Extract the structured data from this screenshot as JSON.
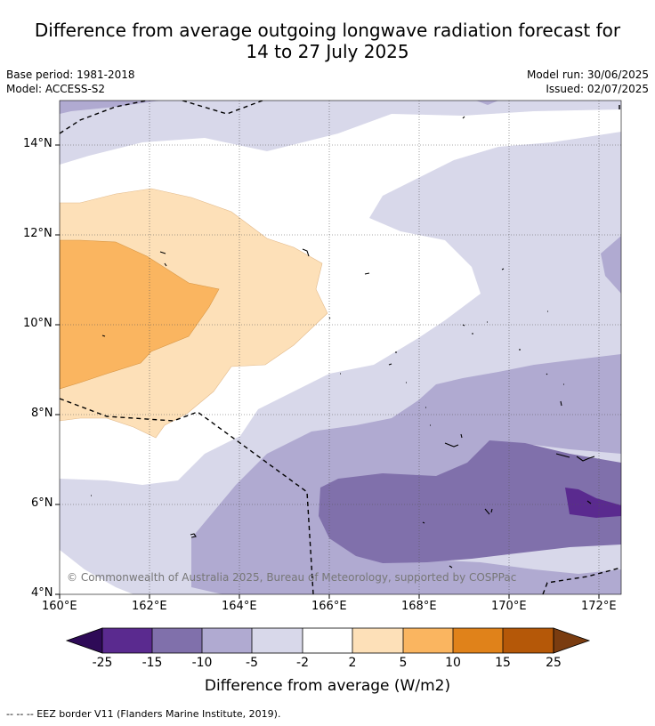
{
  "title_line1": "Difference from average outgoing longwave radiation forecast for",
  "title_line2": "14 to 27 July 2025",
  "base_period": "Base period: 1981-2018",
  "model": "Model: ACCESS-S2",
  "model_run": "Model run: 30/06/2025",
  "issued": "Issued: 02/07/2025",
  "copyright": "© Commonwealth of Australia 2025, Bureau of Meteorology, supported by COSPPac",
  "footnote": "--  --  -- EEZ border V11 (Flanders Marine Institute, 2019).",
  "axes": {
    "y_ticks": [
      "14°N",
      "12°N",
      "10°N",
      "8°N",
      "6°N",
      "4°N"
    ],
    "x_ticks": [
      "160°E",
      "162°E",
      "164°E",
      "166°E",
      "168°E",
      "170°E",
      "172°E"
    ],
    "lat_range": [
      4,
      15
    ],
    "lon_range": [
      160,
      172.5
    ]
  },
  "colorbar": {
    "title": "Difference from average (W/m2)",
    "ticks": [
      "-25",
      "-15",
      "-10",
      "-5",
      "-2",
      "2",
      "5",
      "10",
      "15",
      "25"
    ],
    "colors": [
      "#2e0a57",
      "#5a2a8f",
      "#8070ab",
      "#b0aad1",
      "#d8d8ea",
      "#ffffff",
      "#fde0b8",
      "#fab560",
      "#e0821a",
      "#b55808",
      "#7a3c10"
    ]
  },
  "colors": {
    "bg_neutral": "#ffffff",
    "neg_2_5": "#d8d8ea",
    "neg_5_10": "#b0aad1",
    "neg_10_15": "#8070ab",
    "neg_15_25": "#5a2a8f",
    "pos_2_5": "#fde0b8",
    "pos_5_10": "#fab560"
  }
}
